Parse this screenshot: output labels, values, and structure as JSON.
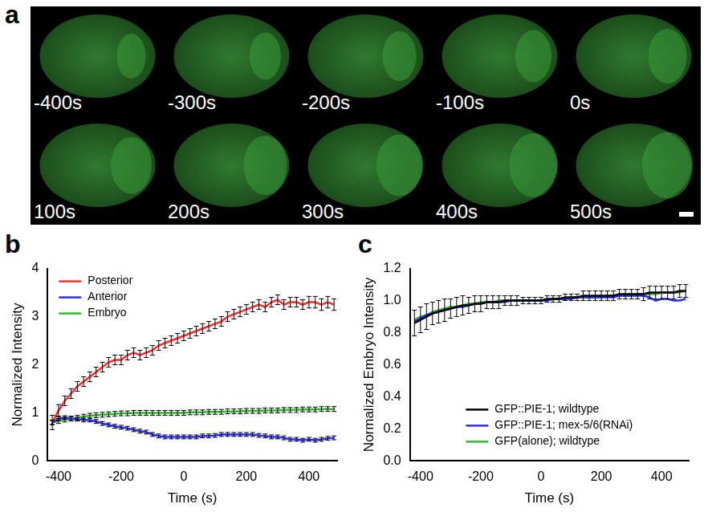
{
  "image_panel": {
    "panel_label": "a",
    "frame_labels": [
      "-400s",
      "-300s",
      "-200s",
      "-100s",
      "0s",
      "100s",
      "200s",
      "300s",
      "400s",
      "500s"
    ]
  },
  "chart_data": [
    {
      "panel_label": "b",
      "type": "line",
      "x_label": "Time (s)",
      "y_label": "Normalized Intensity",
      "x": [
        -420,
        -400,
        -380,
        -360,
        -340,
        -320,
        -300,
        -280,
        -260,
        -240,
        -220,
        -200,
        -180,
        -160,
        -140,
        -120,
        -100,
        -80,
        -60,
        -40,
        -20,
        0,
        20,
        40,
        60,
        80,
        100,
        120,
        140,
        160,
        180,
        200,
        220,
        240,
        260,
        280,
        300,
        320,
        340,
        360,
        380,
        400,
        420,
        440,
        460,
        480
      ],
      "series": [
        {
          "name": "Posterior",
          "color": "#ff2a2a",
          "values": [
            0.8,
            1.05,
            1.25,
            1.4,
            1.55,
            1.65,
            1.75,
            1.85,
            1.95,
            2.05,
            2.1,
            2.1,
            2.2,
            2.25,
            2.2,
            2.25,
            2.3,
            2.4,
            2.45,
            2.5,
            2.55,
            2.6,
            2.65,
            2.7,
            2.75,
            2.8,
            2.85,
            2.9,
            3.0,
            3.05,
            3.1,
            3.15,
            3.2,
            3.25,
            3.2,
            3.3,
            3.35,
            3.25,
            3.3,
            3.3,
            3.25,
            3.3,
            3.3,
            3.25,
            3.3,
            3.25
          ],
          "errors": [
            0.15,
            0.12,
            0.1,
            0.1,
            0.1,
            0.1,
            0.1,
            0.1,
            0.1,
            0.1,
            0.1,
            0.1,
            0.1,
            0.1,
            0.1,
            0.1,
            0.1,
            0.1,
            0.1,
            0.1,
            0.1,
            0.1,
            0.1,
            0.1,
            0.1,
            0.1,
            0.1,
            0.1,
            0.1,
            0.1,
            0.1,
            0.1,
            0.1,
            0.1,
            0.1,
            0.1,
            0.1,
            0.1,
            0.1,
            0.1,
            0.1,
            0.12,
            0.12,
            0.12,
            0.12,
            0.12
          ]
        },
        {
          "name": "Anterior",
          "color": "#2a2aff",
          "values": [
            0.8,
            0.88,
            0.9,
            0.88,
            0.87,
            0.85,
            0.85,
            0.82,
            0.78,
            0.75,
            0.72,
            0.7,
            0.68,
            0.65,
            0.62,
            0.6,
            0.55,
            0.52,
            0.5,
            0.5,
            0.5,
            0.5,
            0.5,
            0.5,
            0.52,
            0.52,
            0.53,
            0.55,
            0.55,
            0.55,
            0.55,
            0.55,
            0.55,
            0.53,
            0.52,
            0.5,
            0.5,
            0.48,
            0.45,
            0.45,
            0.43,
            0.45,
            0.43,
            0.45,
            0.47,
            0.48
          ],
          "errors": [
            0.04,
            0.04,
            0.04,
            0.04,
            0.04,
            0.04,
            0.04,
            0.04,
            0.04,
            0.04,
            0.04,
            0.04,
            0.04,
            0.04,
            0.04,
            0.04,
            0.04,
            0.04,
            0.04,
            0.04,
            0.04,
            0.04,
            0.04,
            0.04,
            0.04,
            0.04,
            0.04,
            0.04,
            0.04,
            0.04,
            0.04,
            0.04,
            0.04,
            0.04,
            0.04,
            0.04,
            0.04,
            0.04,
            0.04,
            0.04,
            0.04,
            0.04,
            0.04,
            0.04,
            0.04,
            0.04
          ]
        },
        {
          "name": "Embryo",
          "color": "#2db82d",
          "values": [
            0.8,
            0.83,
            0.86,
            0.88,
            0.9,
            0.92,
            0.94,
            0.95,
            0.96,
            0.97,
            0.98,
            0.99,
            0.99,
            1.0,
            1.0,
            1.0,
            1.0,
            1.0,
            1.0,
            1.0,
            1.0,
            1.0,
            1.01,
            1.01,
            1.01,
            1.02,
            1.02,
            1.02,
            1.03,
            1.03,
            1.03,
            1.04,
            1.04,
            1.04,
            1.05,
            1.05,
            1.05,
            1.06,
            1.06,
            1.06,
            1.07,
            1.07,
            1.07,
            1.08,
            1.08,
            1.08
          ],
          "errors": [
            0.05,
            0.05,
            0.05,
            0.05,
            0.05,
            0.05,
            0.05,
            0.05,
            0.05,
            0.05,
            0.05,
            0.05,
            0.05,
            0.05,
            0.05,
            0.05,
            0.05,
            0.05,
            0.05,
            0.05,
            0.05,
            0.05,
            0.05,
            0.05,
            0.05,
            0.05,
            0.05,
            0.05,
            0.05,
            0.05,
            0.05,
            0.05,
            0.05,
            0.05,
            0.05,
            0.05,
            0.05,
            0.05,
            0.05,
            0.05,
            0.05,
            0.05,
            0.05,
            0.05,
            0.05,
            0.05
          ]
        }
      ],
      "xlim": [
        -435,
        490
      ],
      "xticks": [
        -400,
        -200,
        0,
        200,
        400
      ],
      "ylim": [
        0,
        4
      ],
      "yticks": [
        0,
        1,
        2,
        3,
        4
      ],
      "grid": false,
      "legend": "upper left"
    },
    {
      "panel_label": "c",
      "type": "line",
      "x_label": "Time (s)",
      "y_label": "Normalized Embryo Intensity",
      "x": [
        -420,
        -400,
        -380,
        -360,
        -340,
        -320,
        -300,
        -280,
        -260,
        -240,
        -220,
        -200,
        -180,
        -160,
        -140,
        -120,
        -100,
        -80,
        -60,
        -40,
        -20,
        0,
        20,
        40,
        60,
        80,
        100,
        120,
        140,
        160,
        180,
        200,
        220,
        240,
        260,
        280,
        300,
        320,
        340,
        360,
        380,
        400,
        420,
        440,
        460,
        480
      ],
      "series": [
        {
          "name": "GFP::PIE-1; wildtype",
          "color": "#000000",
          "values": [
            0.86,
            0.88,
            0.9,
            0.92,
            0.93,
            0.94,
            0.95,
            0.96,
            0.97,
            0.97,
            0.98,
            0.98,
            0.99,
            0.99,
            0.99,
            1.0,
            1.0,
            1.0,
            1.0,
            1.0,
            1.0,
            1.0,
            1.01,
            1.01,
            1.01,
            1.02,
            1.02,
            1.02,
            1.03,
            1.03,
            1.03,
            1.03,
            1.03,
            1.03,
            1.04,
            1.04,
            1.04,
            1.04,
            1.04,
            1.05,
            1.05,
            1.05,
            1.05,
            1.05,
            1.06,
            1.06
          ],
          "errors": [
            0.08,
            0.08,
            0.08,
            0.07,
            0.07,
            0.07,
            0.06,
            0.06,
            0.06,
            0.05,
            0.05,
            0.05,
            0.04,
            0.04,
            0.04,
            0.03,
            0.03,
            0.03,
            0.02,
            0.02,
            0.02,
            0.02,
            0.02,
            0.02,
            0.02,
            0.02,
            0.02,
            0.02,
            0.03,
            0.03,
            0.03,
            0.03,
            0.03,
            0.03,
            0.03,
            0.03,
            0.03,
            0.03,
            0.04,
            0.04,
            0.04,
            0.04,
            0.04,
            0.04,
            0.04,
            0.04
          ]
        },
        {
          "name": "GFP::PIE-1; mex-5/6(RNAi)",
          "color": "#2a2aff",
          "values": [
            0.87,
            0.89,
            0.91,
            0.92,
            0.93,
            0.94,
            0.95,
            0.96,
            0.96,
            0.97,
            0.98,
            0.98,
            0.99,
            0.99,
            0.99,
            0.99,
            1.0,
            1.0,
            1.0,
            1.0,
            1.0,
            1.0,
            1.0,
            1.01,
            1.01,
            1.01,
            1.01,
            1.02,
            1.02,
            1.02,
            1.02,
            1.02,
            1.02,
            1.02,
            1.03,
            1.03,
            1.03,
            1.03,
            1.03,
            1.02,
            1.0,
            1.01,
            1.01,
            1.0,
            1.0,
            1.01
          ]
        },
        {
          "name": "GFP(alone); wildtype",
          "color": "#2db82d",
          "values": [
            0.88,
            0.9,
            0.91,
            0.93,
            0.94,
            0.95,
            0.96,
            0.96,
            0.97,
            0.98,
            0.98,
            0.99,
            0.99,
            0.99,
            1.0,
            1.0,
            1.0,
            1.0,
            1.0,
            1.0,
            1.0,
            1.0,
            1.0,
            1.01,
            1.01,
            1.01,
            1.02,
            1.02,
            1.02,
            1.02,
            1.02,
            1.02,
            1.03,
            1.03,
            1.03,
            1.03,
            1.03,
            1.04,
            1.04,
            1.04,
            1.04,
            1.05,
            1.05,
            1.05,
            1.05,
            1.06
          ]
        }
      ],
      "xlim": [
        -435,
        490
      ],
      "xticks": [
        -400,
        -200,
        0,
        200,
        400
      ],
      "ylim": [
        0,
        1.2
      ],
      "yticks": [
        {
          "value": 0,
          "label": "0.0"
        },
        0.2,
        0.4,
        0.6,
        0.8,
        {
          "value": 1,
          "label": "1.0"
        },
        1.2
      ],
      "grid": false,
      "legend": "lower center"
    }
  ]
}
